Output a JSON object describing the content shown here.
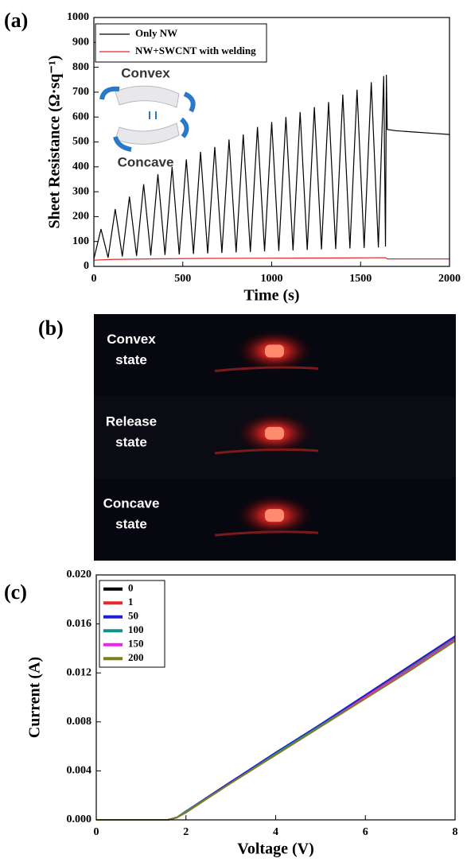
{
  "chart_data": [
    {
      "type": "line",
      "panel_label": "(a)",
      "xlabel": "Time (s)",
      "ylabel": "Sheet Resistance (Ω·sq⁻¹)",
      "xlim": [
        0,
        2000
      ],
      "xticks": [
        0,
        500,
        1000,
        1500,
        2000
      ],
      "ylim": [
        0,
        1000
      ],
      "yticks": [
        0,
        100,
        200,
        300,
        400,
        500,
        600,
        700,
        800,
        900,
        1000
      ],
      "annotations": [
        "Convex",
        "Concave"
      ],
      "series": [
        {
          "name": "Only NW",
          "color": "#000000",
          "x": [
            0,
            40,
            80,
            120,
            160,
            200,
            240,
            280,
            320,
            360,
            400,
            440,
            480,
            520,
            560,
            600,
            640,
            680,
            720,
            760,
            800,
            840,
            880,
            920,
            960,
            1000,
            1040,
            1080,
            1120,
            1160,
            1200,
            1240,
            1280,
            1320,
            1360,
            1400,
            1440,
            1480,
            1520,
            1560,
            1600,
            1630,
            1640,
            1645,
            1650,
            1700,
            1800,
            1900,
            2000
          ],
          "values": [
            30,
            150,
            35,
            230,
            40,
            280,
            42,
            330,
            44,
            370,
            46,
            400,
            48,
            430,
            50,
            460,
            52,
            480,
            54,
            510,
            56,
            530,
            58,
            560,
            60,
            580,
            62,
            600,
            64,
            620,
            66,
            640,
            68,
            660,
            70,
            690,
            72,
            710,
            74,
            740,
            76,
            765,
            80,
            770,
            550,
            545,
            540,
            535,
            530
          ]
        },
        {
          "name": "NW+SWCNT with welding",
          "color": "#e8262b",
          "x": [
            0,
            100,
            300,
            600,
            1000,
            1400,
            1640,
            1650,
            2000
          ],
          "values": [
            25,
            28,
            30,
            32,
            33,
            34,
            35,
            30,
            30
          ]
        }
      ]
    },
    {
      "type": "image",
      "panel_label": "(b)",
      "labels": [
        [
          "Convex",
          "state"
        ],
        [
          "Release",
          "state"
        ],
        [
          "Concave",
          "state"
        ]
      ]
    },
    {
      "type": "line",
      "panel_label": "(c)",
      "xlabel": "Voltage (V)",
      "ylabel": "Current (A)",
      "xlim": [
        0,
        8
      ],
      "xticks": [
        0,
        2,
        4,
        6,
        8
      ],
      "ylim": [
        0,
        0.02
      ],
      "yticks": [
        {
          "value": 0,
          "label": "0.000"
        },
        {
          "value": 0.004,
          "label": "0.004"
        },
        {
          "value": 0.008,
          "label": "0.008"
        },
        {
          "value": 0.012,
          "label": "0.012"
        },
        {
          "value": 0.016,
          "label": "0.016"
        },
        {
          "value": 0.02,
          "label": "0.020"
        }
      ],
      "x": [
        0,
        1.6,
        1.8,
        2,
        3,
        4,
        5,
        6,
        7,
        8
      ],
      "series": [
        {
          "name": "0",
          "color": "#000000",
          "values": [
            0,
            0,
            0.0002,
            0.0007,
            0.0031,
            0.0054,
            0.0077,
            0.0101,
            0.0125,
            0.0149
          ]
        },
        {
          "name": "1",
          "color": "#e8262b",
          "values": [
            0,
            0,
            0.0002,
            0.0007,
            0.0031,
            0.0054,
            0.0077,
            0.0101,
            0.0125,
            0.0149
          ]
        },
        {
          "name": "50",
          "color": "#1f1fd0",
          "values": [
            0,
            0,
            0.0002,
            0.0007,
            0.0031,
            0.0055,
            0.0078,
            0.0102,
            0.0126,
            0.015
          ]
        },
        {
          "name": "100",
          "color": "#14918a",
          "values": [
            0,
            0,
            0.0002,
            0.0007,
            0.003,
            0.0054,
            0.0077,
            0.01,
            0.0124,
            0.0148
          ]
        },
        {
          "name": "150",
          "color": "#ee22ee",
          "values": [
            0,
            0,
            0.0002,
            0.0006,
            0.003,
            0.0053,
            0.0076,
            0.01,
            0.0123,
            0.0147
          ]
        },
        {
          "name": "200",
          "color": "#7f7f1a",
          "values": [
            0,
            0,
            0.0002,
            0.0006,
            0.003,
            0.0053,
            0.0076,
            0.0099,
            0.0122,
            0.0146
          ]
        }
      ]
    }
  ]
}
